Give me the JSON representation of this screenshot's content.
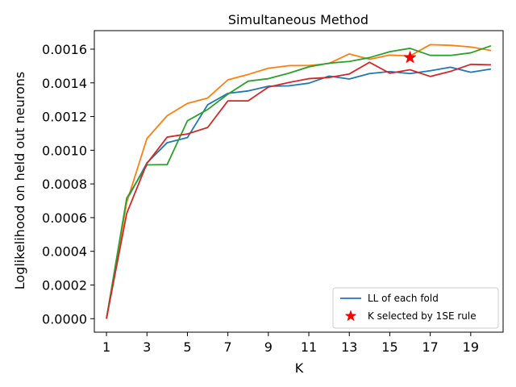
{
  "chart_data": {
    "type": "line",
    "title": "Simultaneous Method",
    "xlabel": "K",
    "ylabel": "Loglikelihood on held out neurons",
    "xlim": [
      0.4,
      20.6
    ],
    "ylim": [
      -8e-05,
      0.00171
    ],
    "xticks": [
      1,
      3,
      5,
      7,
      9,
      11,
      13,
      15,
      17,
      19
    ],
    "yticks": [
      0.0,
      0.0002,
      0.0004,
      0.0006,
      0.0008,
      0.001,
      0.0012,
      0.0014,
      0.0016
    ],
    "ytick_labels": [
      "0.0000",
      "0.0002",
      "0.0004",
      "0.0006",
      "0.0008",
      "0.0010",
      "0.0012",
      "0.0014",
      "0.0016"
    ],
    "xtick_labels": [
      "1",
      "3",
      "5",
      "7",
      "9",
      "11",
      "13",
      "15",
      "17",
      "19"
    ],
    "x": [
      1,
      2,
      3,
      4,
      5,
      6,
      7,
      8,
      9,
      10,
      11,
      12,
      13,
      14,
      15,
      16,
      17,
      18,
      19,
      20
    ],
    "series": [
      {
        "color": "#1f77b4",
        "values": [
          0.0,
          0.000705,
          0.000925,
          0.001045,
          0.001075,
          0.00127,
          0.001338,
          0.001352,
          0.00138,
          0.001382,
          0.001398,
          0.00144,
          0.001423,
          0.001455,
          0.001467,
          0.001455,
          0.001472,
          0.001493,
          0.001463,
          0.001482
        ]
      },
      {
        "color": "#ff7f0e",
        "values": [
          0.0,
          0.00069,
          0.00107,
          0.001205,
          0.001278,
          0.00131,
          0.001418,
          0.00145,
          0.001487,
          0.001502,
          0.001503,
          0.001515,
          0.001572,
          0.00154,
          0.001565,
          0.00156,
          0.001627,
          0.001623,
          0.001613,
          0.001592
        ]
      },
      {
        "color": "#2ca02c",
        "values": [
          0.0,
          0.000715,
          0.000913,
          0.000915,
          0.001175,
          0.001242,
          0.001333,
          0.00141,
          0.001425,
          0.001457,
          0.001495,
          0.001517,
          0.001527,
          0.00155,
          0.001585,
          0.001605,
          0.001563,
          0.001563,
          0.001578,
          0.00162
        ]
      },
      {
        "color": "#d62728",
        "values": [
          0.0,
          0.000625,
          0.000922,
          0.001078,
          0.001097,
          0.001135,
          0.001293,
          0.001293,
          0.001375,
          0.001402,
          0.001425,
          0.001432,
          0.001453,
          0.001522,
          0.001457,
          0.001478,
          0.001438,
          0.001468,
          0.00151,
          0.001507
        ]
      }
    ],
    "marker": {
      "x": 16,
      "y": 0.00155,
      "color": "#ff0000",
      "symbol": "star"
    },
    "legend": {
      "placement": "lower-right",
      "entries": [
        {
          "label": "LL of each fold",
          "kind": "line",
          "color": "#1f77b4"
        },
        {
          "label": "K selected by 1SE rule",
          "kind": "star",
          "color": "#ff0000"
        }
      ]
    },
    "grid": false
  }
}
